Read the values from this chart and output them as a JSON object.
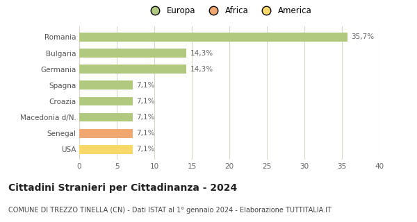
{
  "categories": [
    "USA",
    "Senegal",
    "Macedonia d/N.",
    "Croazia",
    "Spagna",
    "Germania",
    "Bulgaria",
    "Romania"
  ],
  "values": [
    7.1,
    7.1,
    7.1,
    7.1,
    7.1,
    14.3,
    14.3,
    35.7
  ],
  "labels": [
    "7,1%",
    "7,1%",
    "7,1%",
    "7,1%",
    "7,1%",
    "14,3%",
    "14,3%",
    "35,7%"
  ],
  "colors": [
    "#f9d86a",
    "#f0a870",
    "#b0c97e",
    "#b0c97e",
    "#b0c97e",
    "#b0c97e",
    "#b0c97e",
    "#b0c97e"
  ],
  "legend": [
    {
      "label": "Europa",
      "color": "#b0c97e"
    },
    {
      "label": "Africa",
      "color": "#f0a870"
    },
    {
      "label": "America",
      "color": "#f9d86a"
    }
  ],
  "title": "Cittadini Stranieri per Cittadinanza - 2024",
  "subtitle": "COMUNE DI TREZZO TINELLA (CN) - Dati ISTAT al 1° gennaio 2024 - Elaborazione TUTTITALIA.IT",
  "xlim": [
    0,
    40
  ],
  "xticks": [
    0,
    5,
    10,
    15,
    20,
    25,
    30,
    35,
    40
  ],
  "background_color": "#ffffff",
  "grid_color": "#d8d8c8",
  "bar_height": 0.55,
  "label_fontsize": 7.5,
  "tick_fontsize": 7.5,
  "title_fontsize": 10,
  "subtitle_fontsize": 7,
  "ylabel_color": "#666666",
  "xlabel_color": "#666666"
}
